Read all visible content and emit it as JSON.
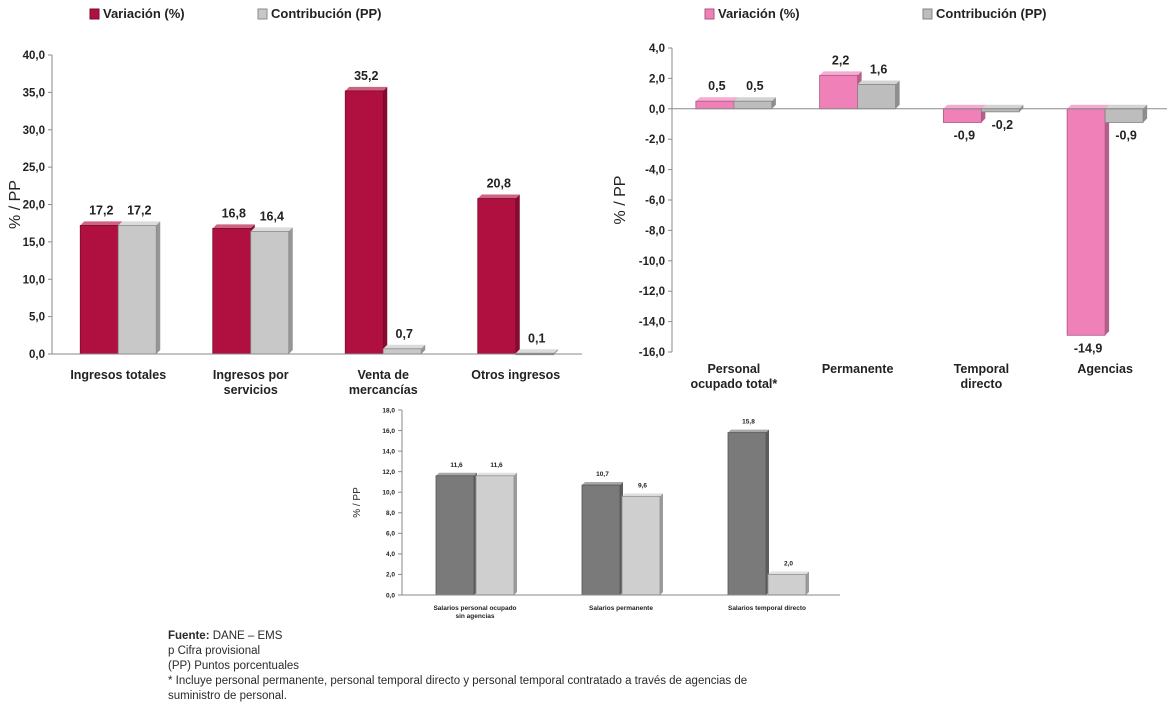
{
  "chart_data": [
    {
      "type": "bar",
      "title": "",
      "legend": [
        "Variación (%)",
        "Contribución (PP)"
      ],
      "legend_position": "top",
      "categories": [
        "Ingresos totales",
        [
          "Ingresos por",
          "servicios"
        ],
        [
          "Venta de",
          "mercancías"
        ],
        "Otros ingresos"
      ],
      "series": [
        {
          "name": "Variación (%)",
          "values": [
            17.2,
            16.8,
            35.2,
            20.8
          ],
          "labels": [
            "17,2",
            "16,8",
            "35,2",
            "20,8"
          ],
          "color": "#B0103F"
        },
        {
          "name": "Contribución (PP)",
          "values": [
            17.2,
            16.4,
            0.7,
            0.1
          ],
          "labels": [
            "17,2",
            "16,4",
            "0,7",
            "0,1"
          ],
          "color": "#C8C8C8"
        }
      ],
      "ylabel": "% / PP",
      "ylim": [
        0,
        40
      ],
      "yticks": [
        0,
        5,
        10,
        15,
        20,
        25,
        30,
        35,
        40
      ],
      "ytick_labels": [
        "0,0",
        "5,0",
        "10,0",
        "15,0",
        "20,0",
        "25,0",
        "30,0",
        "35,0",
        "40,0"
      ],
      "grid": false
    },
    {
      "type": "bar",
      "title": "",
      "legend": [
        "Variación (%)",
        "Contribución (PP)"
      ],
      "legend_position": "top",
      "categories": [
        [
          "Personal",
          "ocupado total*"
        ],
        "Permanente",
        [
          "Temporal",
          "directo"
        ],
        "Agencias"
      ],
      "series": [
        {
          "name": "Variación (%)",
          "values": [
            0.5,
            2.2,
            -0.9,
            -14.9
          ],
          "labels": [
            "0,5",
            "2,2",
            "-0,9",
            "-14,9"
          ],
          "color": "#F080B8"
        },
        {
          "name": "Contribución (PP)",
          "values": [
            0.5,
            1.6,
            -0.2,
            -0.9
          ],
          "labels": [
            "0,5",
            "1,6",
            "-0,2",
            "-0,9"
          ],
          "color": "#BDBDBD"
        }
      ],
      "ylabel": "% / PP",
      "ylim": [
        -16,
        4
      ],
      "yticks": [
        4,
        2,
        0,
        -2,
        -4,
        -6,
        -8,
        -10,
        -12,
        -14,
        -16
      ],
      "ytick_labels": [
        "4,0",
        "2,0",
        "0,0",
        "-2,0",
        "-4,0",
        "-6,0",
        "-8,0",
        "-10,0",
        "-12,0",
        "-14,0",
        "-16,0"
      ],
      "grid": false
    },
    {
      "type": "bar",
      "title": "",
      "categories": [
        [
          "Salarios personal ocupado",
          "sin agencias"
        ],
        "Salarios permanente",
        "Salarios temporal directo"
      ],
      "series": [
        {
          "values": [
            11.6,
            10.7,
            15.8
          ],
          "labels": [
            "11,6",
            "10,7",
            "15,8"
          ],
          "color": "#7A7A7A"
        },
        {
          "values": [
            11.6,
            9.6,
            2.0
          ],
          "labels": [
            "11,6",
            "9,6",
            "2,0"
          ],
          "color": "#CFCFCF"
        }
      ],
      "ylabel": "% / PP",
      "ylim": [
        0,
        18
      ],
      "yticks": [
        0,
        2,
        4,
        6,
        8,
        10,
        12,
        14,
        16,
        18
      ],
      "ytick_labels": [
        "0,0",
        "2,0",
        "4,0",
        "6,0",
        "8,0",
        "10,0",
        "12,0",
        "14,0",
        "16,0",
        "18,0"
      ],
      "grid": false
    }
  ],
  "notes": {
    "source_label": "Fuente:",
    "source_text": " DANE – EMS",
    "line2": "p Cifra provisional",
    "line3": "(PP) Puntos porcentuales",
    "line4": "* Incluye personal permanente, personal temporal directo y personal temporal contratado a través de agencias de",
    "line5": "suministro de personal."
  }
}
